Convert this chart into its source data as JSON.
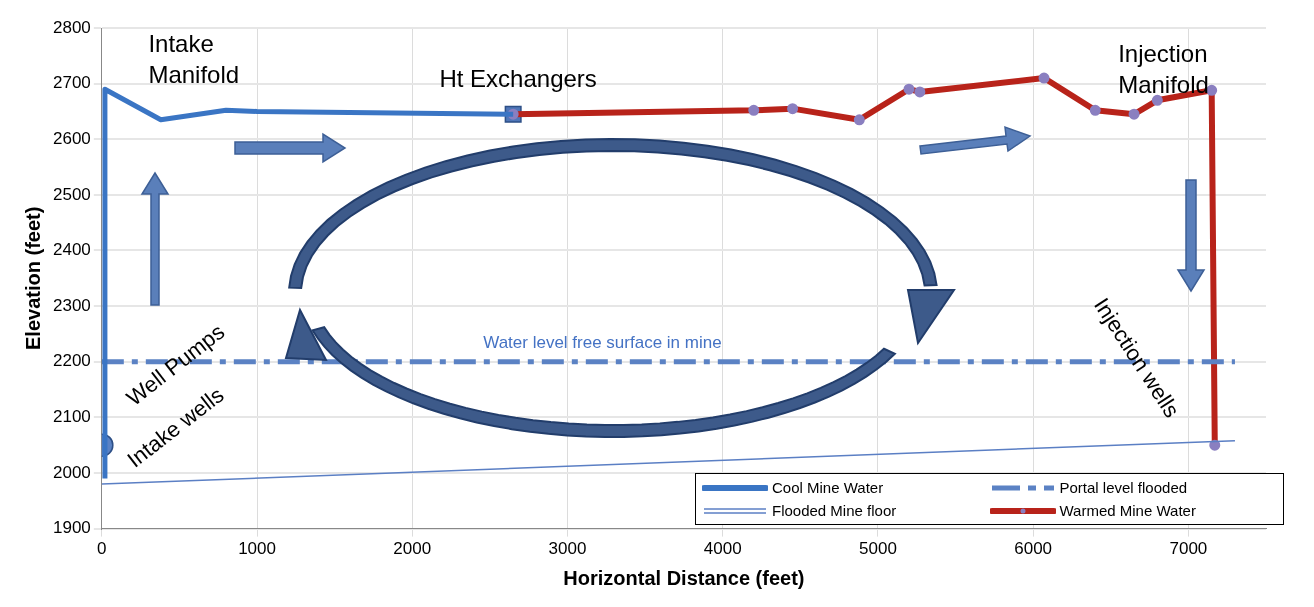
{
  "chart_data": {
    "type": "line",
    "xlabel": "Horizontal Distance (feet)",
    "ylabel": "Elevation (feet)",
    "xlim": [
      0,
      7500
    ],
    "xticks": [
      0,
      1000,
      2000,
      3000,
      4000,
      5000,
      6000,
      7000
    ],
    "ylim": [
      1900,
      2800
    ],
    "yticks": [
      1900,
      2000,
      2100,
      2200,
      2300,
      2400,
      2500,
      2600,
      2700,
      2800
    ],
    "grid": true,
    "legend": "bottom right",
    "series": [
      {
        "name": "Cool Mine Water",
        "type": "line",
        "color": "#3a75c4",
        "marker": "none",
        "x": [
          20,
          20,
          380,
          800,
          1000,
          2650
        ],
        "values": [
          1990,
          2690,
          2635,
          2652,
          2650,
          2645
        ]
      },
      {
        "name": "Flooded Mine floor",
        "type": "line",
        "color": "#5b7fc4",
        "marker": "none",
        "x": [
          0,
          7300
        ],
        "values": [
          1980,
          2058
        ]
      },
      {
        "name": "Portal level flooded",
        "type": "line",
        "color": "#5b82c4",
        "marker": "none",
        "line_style": "dashed",
        "x": [
          0,
          7300
        ],
        "values": [
          2200,
          2200
        ]
      },
      {
        "name": "Warmed Mine Water",
        "type": "line",
        "color": "#b8231a",
        "marker": "circle",
        "x": [
          2650,
          4200,
          4450,
          4880,
          5200,
          5270,
          6070,
          6400,
          6650,
          6800,
          7150,
          7170
        ],
        "values": [
          2645,
          2652,
          2655,
          2635,
          2690,
          2685,
          2710,
          2652,
          2645,
          2670,
          2688,
          2050
        ]
      },
      {
        "type": "scatter",
        "color": "#5b82c4",
        "marker": "circle",
        "x": [
          0
        ],
        "values": [
          2050
        ]
      },
      {
        "type": "scatter",
        "color": "#4f76b8",
        "marker": "square",
        "x": [
          2650
        ],
        "values": [
          2645
        ]
      }
    ],
    "annotations": [
      "Intake\nManifold",
      "Ht Exchangers",
      "Injection\nManifold",
      "Water level free surface in mine",
      "Well Pumps",
      "Intake wells",
      "Injection wells"
    ]
  }
}
